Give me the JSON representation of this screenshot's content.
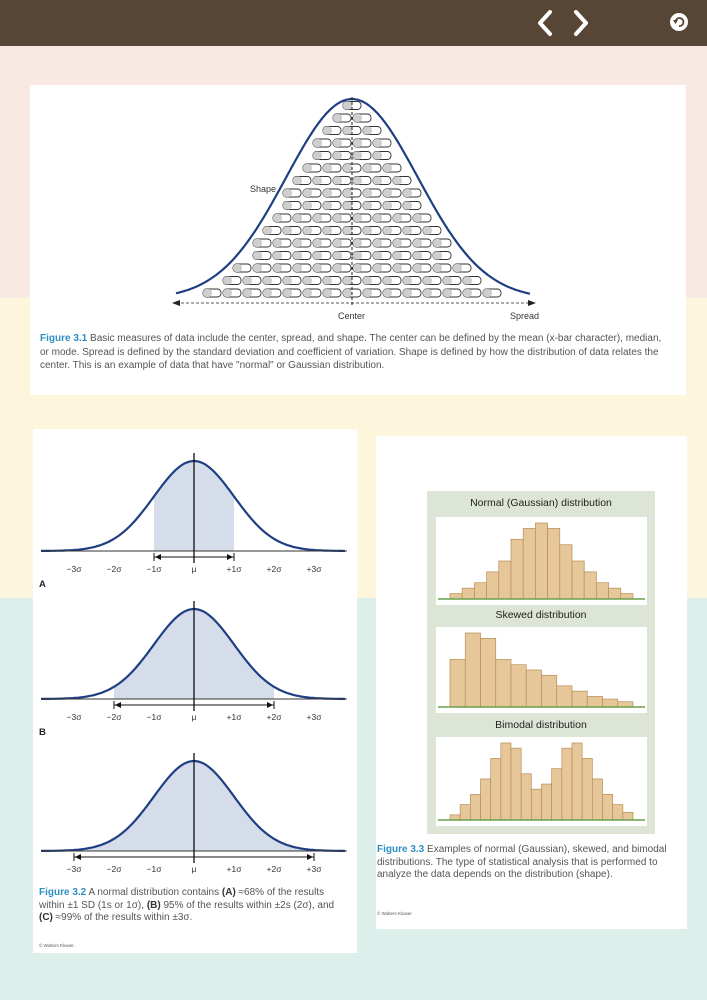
{
  "nav": {
    "prev_icon": "chevron-left-icon",
    "next_icon": "chevron-right-icon",
    "undo_icon": "undo-icon"
  },
  "figure1": {
    "shape_label": "Shape",
    "center_label": "Center",
    "spread_label": "Spread",
    "caption_label": "Figure 3.1",
    "caption_text": " Basic measures of data include the center, spread, and shape. The center can be defined by the mean (x-bar character), median, or mode. Spread is defined by the standard deviation and coefficient of variation. Shape is defined by how the distribution of data relates the center. This is an example of data that have \"normal\" or Gaussian distribution."
  },
  "figure2": {
    "axis_labels": [
      "−3σ",
      "−2σ",
      "−1σ",
      "μ",
      "+1σ",
      "+2σ",
      "+3σ"
    ],
    "panels": [
      {
        "letter": "A",
        "sigma_range": 1
      },
      {
        "letter": "B",
        "sigma_range": 2
      },
      {
        "letter": "C",
        "sigma_range": 3
      }
    ],
    "caption_label": "Figure 3.2",
    "caption_part1": " A normal distribution contains ",
    "caption_a": "(A)",
    "caption_part2": " ≈68% of the results within ±1 SD (1s or 1σ), ",
    "caption_b": "(B)",
    "caption_part3": " 95% of the results within ±2s (2σ), and ",
    "caption_c": "(C)",
    "caption_part4": " ≈99% of the results within ±3σ.",
    "credit": "© Wolters Kluwer."
  },
  "figure3": {
    "normal_title": "Normal (Gaussian) distribution",
    "skewed_title": "Skewed distribution",
    "bimodal_title": "Bimodal distribution",
    "normal_bars": [
      1,
      2,
      3,
      5,
      7,
      11,
      13,
      14,
      13,
      10,
      7,
      5,
      3,
      2,
      1
    ],
    "skewed_bars": [
      9,
      14,
      13,
      9,
      8,
      7,
      6,
      4,
      3,
      2,
      1.5,
      1
    ],
    "bimodal_bars": [
      1,
      3,
      5,
      8,
      12,
      15,
      14,
      9,
      6,
      7,
      10,
      14,
      15,
      12,
      8,
      5,
      3,
      1.5
    ],
    "caption_label": "Figure 3.3",
    "caption_text": " Examples of normal (Gaussian), skewed, and bimodal distributions. The type of statistical analysis that is performed to analyze the data depends on the distribution (shape).",
    "credit": "© Wolters Kluwer."
  }
}
